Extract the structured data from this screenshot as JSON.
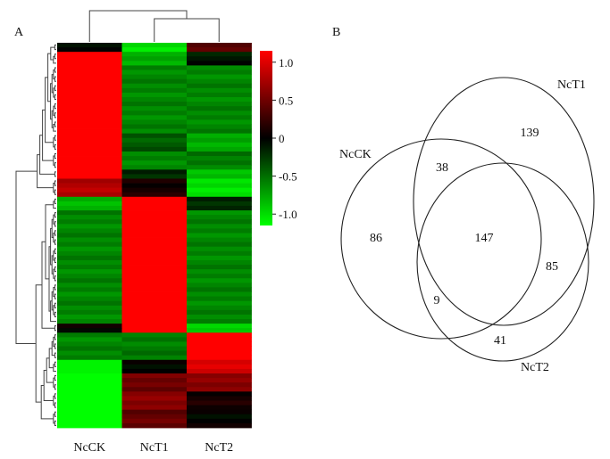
{
  "panels": {
    "a": "A",
    "b": "B"
  },
  "chart_data": [
    {
      "type": "heatmap",
      "columns": [
        "NcCK",
        "NcT1",
        "NcT2"
      ],
      "colorbar": {
        "ticks": [
          "1.0",
          "0.5",
          "0",
          "-0.5",
          "-1.0"
        ],
        "tick_values": [
          1.0,
          0.5,
          0,
          -0.5,
          -1.0
        ],
        "range": [
          -1.15,
          1.15
        ],
        "colors": {
          "low": "#00ff00",
          "mid": "#000000",
          "high": "#ff0000"
        }
      },
      "column_dendrogram": "NcT1 and NcT2 join first, then NcCK",
      "row_blocks": [
        {
          "rows": 2,
          "values": [
            0.0,
            -1.0,
            0.4
          ]
        },
        {
          "rows": 3,
          "values": [
            1.15,
            -0.8,
            -0.1
          ]
        },
        {
          "rows": 15,
          "values": [
            1.15,
            -0.6,
            -0.6
          ]
        },
        {
          "rows": 4,
          "values": [
            1.15,
            -0.4,
            -0.75
          ]
        },
        {
          "rows": 4,
          "values": [
            1.15,
            -0.6,
            -0.55
          ]
        },
        {
          "rows": 2,
          "values": [
            1.15,
            -0.2,
            -0.9
          ]
        },
        {
          "rows": 4,
          "values": [
            0.8,
            0.1,
            -1.0
          ]
        },
        {
          "rows": 3,
          "values": [
            -0.8,
            1.15,
            -0.2
          ]
        },
        {
          "rows": 25,
          "values": [
            -0.6,
            1.15,
            -0.6
          ]
        },
        {
          "rows": 2,
          "values": [
            0.0,
            1.15,
            -0.9
          ]
        },
        {
          "rows": 6,
          "values": [
            -0.6,
            -0.55,
            1.15
          ]
        },
        {
          "rows": 3,
          "values": [
            -1.1,
            0.0,
            1.0
          ]
        },
        {
          "rows": 4,
          "values": [
            -1.15,
            0.5,
            0.6
          ]
        },
        {
          "rows": 4,
          "values": [
            -1.15,
            0.6,
            0.1
          ]
        },
        {
          "rows": 4,
          "values": [
            -1.15,
            0.45,
            0.0
          ]
        }
      ]
    },
    {
      "type": "venn",
      "sets": [
        "NcCK",
        "NcT1",
        "NcT2"
      ],
      "regions": [
        {
          "sets": [
            "NcCK"
          ],
          "value": 86
        },
        {
          "sets": [
            "NcT1"
          ],
          "value": 139
        },
        {
          "sets": [
            "NcT2"
          ],
          "value": 41
        },
        {
          "sets": [
            "NcCK",
            "NcT1"
          ],
          "value": 38
        },
        {
          "sets": [
            "NcT1",
            "NcT2"
          ],
          "value": 85
        },
        {
          "sets": [
            "NcCK",
            "NcT2"
          ],
          "value": 9
        },
        {
          "sets": [
            "NcCK",
            "NcT1",
            "NcT2"
          ],
          "value": 147
        }
      ]
    }
  ]
}
